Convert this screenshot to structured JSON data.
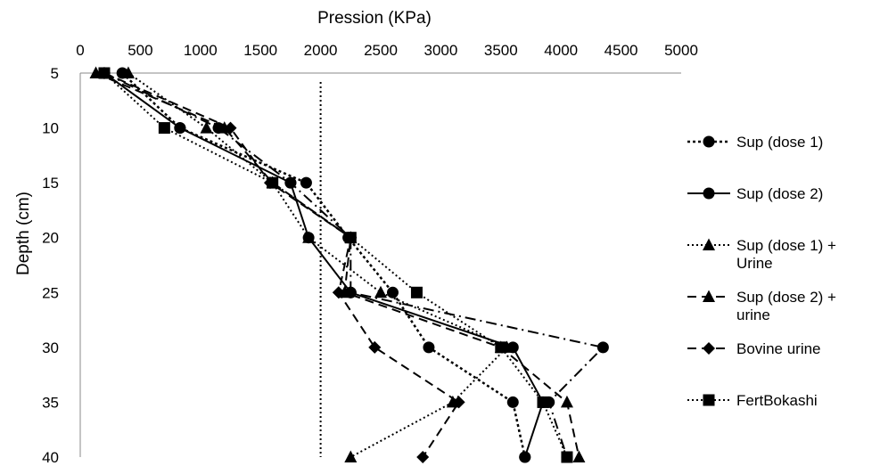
{
  "chart_data": {
    "type": "line",
    "title": "",
    "xlabel": "Pression (KPa)",
    "ylabel": "Depth (cm)",
    "xlim": [
      0,
      5000
    ],
    "ylim": [
      5,
      40
    ],
    "x_axis_position": "top",
    "y_axis_inverted": true,
    "x_ticks": [
      "0",
      "500",
      "1000",
      "1500",
      "2000",
      "2500",
      "3000",
      "3500",
      "4000",
      "4500",
      "5000"
    ],
    "y_ticks": [
      "5",
      "10",
      "15",
      "20",
      "25",
      "30",
      "35",
      "40"
    ],
    "grid": false,
    "legend_position": "right",
    "reference_line": {
      "x": 2000,
      "style": "dotted"
    },
    "depth": [
      5,
      10,
      15,
      20,
      25,
      30,
      35,
      40
    ],
    "series": [
      {
        "name": "Sup (dose 1)",
        "marker": "circle",
        "dash": "dotted-heavy",
        "values": [
          350,
          830,
          1880,
          2230,
          2600,
          2900,
          3600,
          3700
        ]
      },
      {
        "name": "Sup (dose 2)",
        "marker": "circle",
        "dash": "solid",
        "values": [
          200,
          830,
          1750,
          1900,
          2250,
          3600,
          3850,
          3700
        ]
      },
      {
        "name": "Sup (dose 1) + Urine",
        "marker": "triangle",
        "dash": "dotted",
        "values": [
          400,
          1050,
          1600,
          1900,
          2500,
          3550,
          3100,
          2250
        ]
      },
      {
        "name": "Sup (dose 2) + urine",
        "marker": "triangle",
        "dash": "dashed",
        "values": [
          130,
          1200,
          1600,
          2250,
          2200,
          3500,
          4050,
          4150
        ]
      },
      {
        "name": "Bovine urine",
        "marker": "diamond",
        "dash": "dashed",
        "values": [
          200,
          1250,
          1580,
          2250,
          2150,
          2450,
          3150,
          2850
        ]
      },
      {
        "name": "FertBokashi",
        "marker": "square",
        "dash": "dotted",
        "values": [
          200,
          700,
          1600,
          2250,
          2800,
          3500,
          3850,
          4050
        ]
      },
      {
        "name": "",
        "marker": "circle",
        "dash": "dashdot",
        "values": [
          200,
          1150,
          1750,
          2250,
          2250,
          4350,
          3900,
          4050
        ]
      }
    ]
  }
}
